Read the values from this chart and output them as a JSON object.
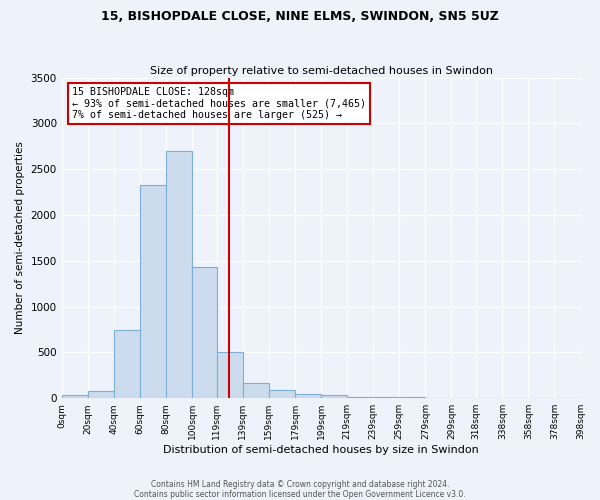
{
  "title": "15, BISHOPDALE CLOSE, NINE ELMS, SWINDON, SN5 5UZ",
  "subtitle": "Size of property relative to semi-detached houses in Swindon",
  "xlabel": "Distribution of semi-detached houses by size in Swindon",
  "ylabel": "Number of semi-detached properties",
  "bar_color": "#ccdcee",
  "bar_edge_color": "#7bafd4",
  "background_color": "#eef2fa",
  "grid_color": "#ffffff",
  "property_line_x": 128,
  "property_line_color": "#cc0000",
  "annotation_title": "15 BISHOPDALE CLOSE: 128sqm",
  "annotation_line1": "← 93% of semi-detached houses are smaller (7,465)",
  "annotation_line2": "7% of semi-detached houses are larger (525) →",
  "annotation_box_color": "#cc0000",
  "footer_line1": "Contains HM Land Registry data © Crown copyright and database right 2024.",
  "footer_line2": "Contains public sector information licensed under the Open Government Licence v3.0.",
  "bin_edges": [
    0,
    20,
    40,
    60,
    80,
    100,
    119,
    139,
    159,
    179,
    199,
    219,
    239,
    259,
    279,
    299,
    318,
    338,
    358,
    378,
    398
  ],
  "bin_counts": [
    30,
    80,
    750,
    2330,
    2700,
    1430,
    500,
    170,
    90,
    50,
    30,
    15,
    10,
    8,
    5,
    3,
    2,
    2,
    1,
    1
  ],
  "tick_labels": [
    "0sqm",
    "20sqm",
    "40sqm",
    "60sqm",
    "80sqm",
    "100sqm",
    "119sqm",
    "139sqm",
    "159sqm",
    "179sqm",
    "199sqm",
    "219sqm",
    "239sqm",
    "259sqm",
    "279sqm",
    "299sqm",
    "318sqm",
    "338sqm",
    "358sqm",
    "378sqm",
    "398sqm"
  ],
  "ylim": [
    0,
    3500
  ],
  "yticks": [
    0,
    500,
    1000,
    1500,
    2000,
    2500,
    3000,
    3500
  ]
}
